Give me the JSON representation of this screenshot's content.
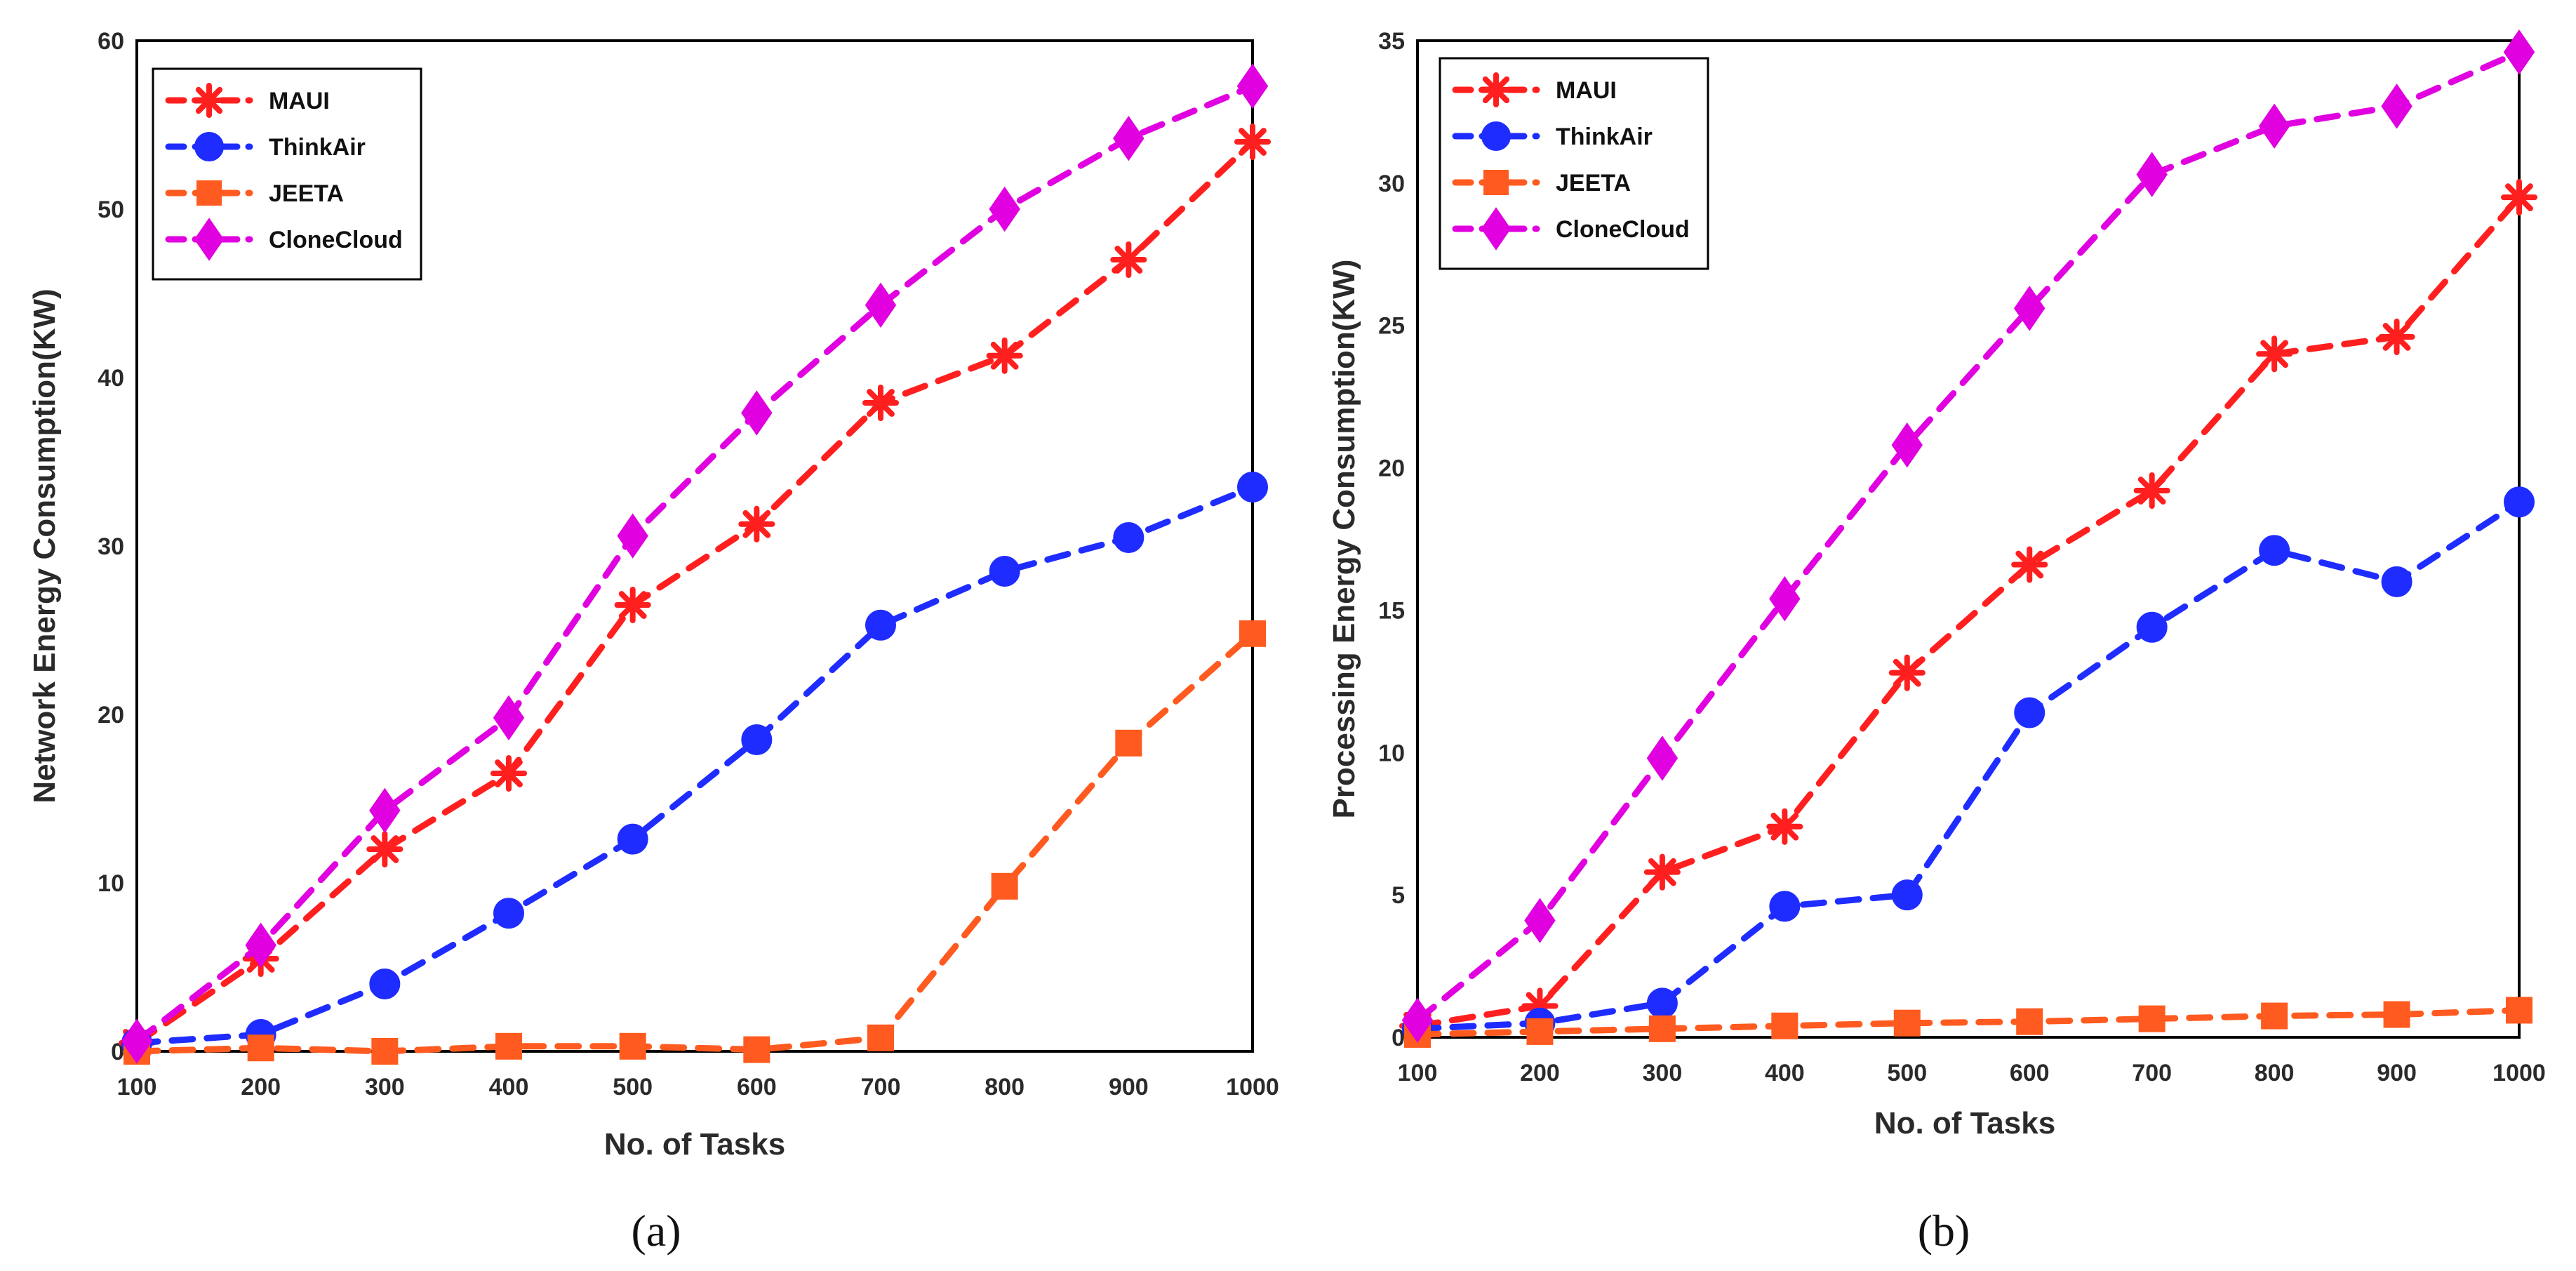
{
  "chart_data": [
    {
      "type": "line",
      "panel": "(a)",
      "title": "",
      "xlabel": "No. of Tasks",
      "ylabel": "Network Energy Consumption(KW)",
      "x": [
        100,
        200,
        300,
        400,
        500,
        600,
        700,
        800,
        900,
        1000
      ],
      "x_ticks": [
        "100",
        "200",
        "300",
        "400",
        "500",
        "600",
        "700",
        "800",
        "900",
        "1000"
      ],
      "xlim": [
        100,
        1000
      ],
      "ylim": [
        0,
        60
      ],
      "y_ticks": [
        "0",
        "10",
        "20",
        "30",
        "40",
        "50",
        "60"
      ],
      "grid": true,
      "legend_position": "top-left",
      "series": [
        {
          "name": "MAUI",
          "color": "#ff1f1f",
          "marker": "asterisk",
          "values": [
            0.5,
            5.5,
            12,
            16.5,
            26.5,
            31.3,
            38.5,
            41.3,
            47,
            54
          ]
        },
        {
          "name": "ThinkAir",
          "color": "#1f2cff",
          "marker": "circle",
          "values": [
            0.5,
            1,
            4,
            8.2,
            12.6,
            18.5,
            25.3,
            28.5,
            30.5,
            33.5
          ]
        },
        {
          "name": "JEETA",
          "color": "#ff5a1f",
          "marker": "square",
          "values": [
            0,
            0.2,
            0,
            0.3,
            0.3,
            0.1,
            0.8,
            9.8,
            18.3,
            24.8
          ]
        },
        {
          "name": "CloneCloud",
          "color": "#e000e0",
          "marker": "diamond",
          "values": [
            0.6,
            6.3,
            14.3,
            19.8,
            30.6,
            37.9,
            44.3,
            50,
            54.2,
            57.3
          ]
        }
      ]
    },
    {
      "type": "line",
      "panel": "(b)",
      "title": "",
      "xlabel": "No. of Tasks",
      "ylabel": "Processing Energy Consumption(KW)",
      "x": [
        100,
        200,
        300,
        400,
        500,
        600,
        700,
        800,
        900,
        1000
      ],
      "x_ticks": [
        "100",
        "200",
        "300",
        "400",
        "500",
        "600",
        "700",
        "800",
        "900",
        "1000"
      ],
      "xlim": [
        100,
        1000
      ],
      "ylim": [
        0,
        35
      ],
      "y_ticks": [
        "0",
        "5",
        "10",
        "15",
        "20",
        "25",
        "30",
        "35"
      ],
      "grid": true,
      "legend_position": "top-left",
      "series": [
        {
          "name": "MAUI",
          "color": "#ff1f1f",
          "marker": "asterisk",
          "values": [
            0.4,
            1.1,
            5.8,
            7.4,
            12.8,
            16.6,
            19.2,
            24,
            24.6,
            29.5
          ]
        },
        {
          "name": "ThinkAir",
          "color": "#1f2cff",
          "marker": "circle",
          "values": [
            0.3,
            0.5,
            1.2,
            4.6,
            5,
            11.4,
            14.4,
            17.1,
            16,
            18.8
          ]
        },
        {
          "name": "JEETA",
          "color": "#ff5a1f",
          "marker": "square",
          "values": [
            0.1,
            0.2,
            0.3,
            0.4,
            0.5,
            0.55,
            0.65,
            0.75,
            0.8,
            0.95
          ]
        },
        {
          "name": "CloneCloud",
          "color": "#e000e0",
          "marker": "diamond",
          "values": [
            0.6,
            4.1,
            9.8,
            15.4,
            20.8,
            25.6,
            30.3,
            32,
            32.7,
            34.6
          ]
        }
      ]
    }
  ]
}
